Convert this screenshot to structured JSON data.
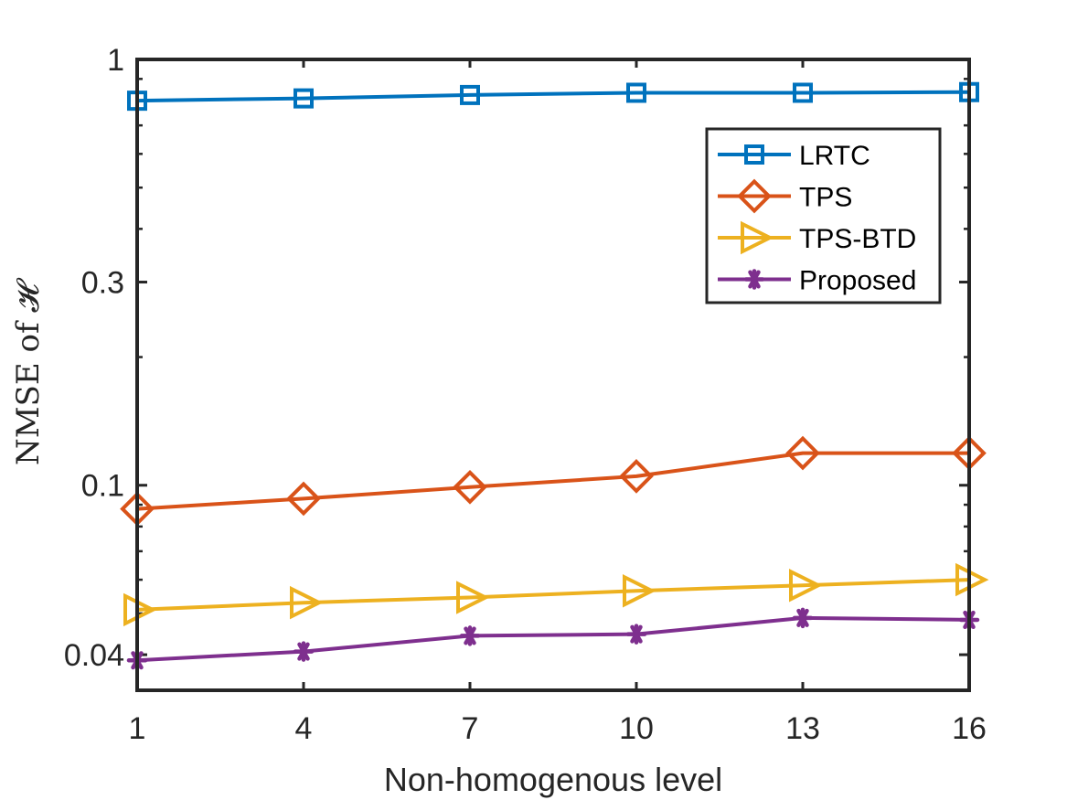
{
  "chart_data": {
    "type": "line",
    "title": "",
    "xlabel": "Non-homogenous level",
    "ylabel": "NMSE of 𝓗",
    "yscale": "log",
    "grid": false,
    "legend_position": "top-right",
    "xlim": [
      1,
      16
    ],
    "ylim": [
      0.033,
      1
    ],
    "x": [
      1,
      4,
      7,
      10,
      13,
      16
    ],
    "xticks": [
      "1",
      "4",
      "7",
      "10",
      "13",
      "16"
    ],
    "yticks": [
      {
        "value": 0.04,
        "label": "0.04"
      },
      {
        "value": 0.1,
        "label": "0.1"
      },
      {
        "value": 0.3,
        "label": "0.3"
      },
      {
        "value": 1,
        "label": "1"
      }
    ],
    "series": [
      {
        "name": "LRTC",
        "color": "#0072BD",
        "marker": "square",
        "values": [
          0.8,
          0.81,
          0.825,
          0.835,
          0.835,
          0.838
        ]
      },
      {
        "name": "TPS",
        "color": "#D95319",
        "marker": "diamond",
        "values": [
          0.088,
          0.093,
          0.099,
          0.105,
          0.119,
          0.119
        ]
      },
      {
        "name": "TPS-BTD",
        "color": "#EDB120",
        "marker": "triangle-right",
        "values": [
          0.051,
          0.053,
          0.0545,
          0.0565,
          0.0582,
          0.06
        ]
      },
      {
        "name": "Proposed",
        "color": "#7E2F8E",
        "marker": "asterisk",
        "values": [
          0.0388,
          0.0407,
          0.0443,
          0.0447,
          0.0488,
          0.0483
        ]
      }
    ]
  }
}
